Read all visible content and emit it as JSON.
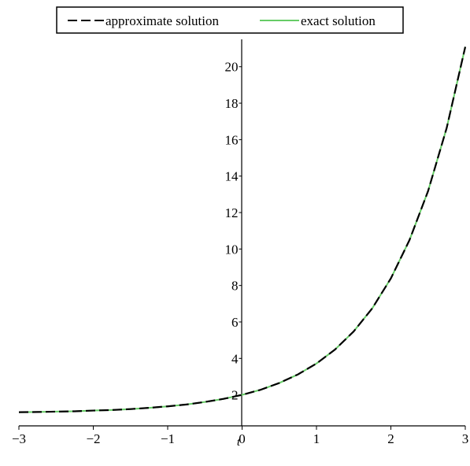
{
  "chart_data": {
    "type": "line",
    "title": "",
    "xlabel": "t",
    "ylabel": "",
    "xlim": [
      -3,
      3
    ],
    "ylim": [
      0.3,
      21.5
    ],
    "x_ticks": [
      -3,
      -2,
      -1,
      0,
      1,
      2,
      3
    ],
    "x_tick_labels": [
      "−3",
      "−2",
      "−1",
      "0",
      "1",
      "2",
      "3"
    ],
    "y_ticks": [
      2,
      4,
      6,
      8,
      10,
      12,
      14,
      16,
      18,
      20
    ],
    "y_tick_labels": [
      "2",
      "4",
      "6",
      "8",
      "10",
      "12",
      "14",
      "16",
      "18",
      "20"
    ],
    "grid": false,
    "legend_position": "top",
    "x": [
      -3,
      -2.75,
      -2.5,
      -2.25,
      -2,
      -1.75,
      -1.5,
      -1.25,
      -1,
      -0.75,
      -0.5,
      -0.25,
      0,
      0.25,
      0.5,
      0.75,
      1,
      1.25,
      1.5,
      1.75,
      2,
      2.25,
      2.5,
      2.75,
      3
    ],
    "series": [
      {
        "name": "approximate solution",
        "color": "#000000",
        "dash": "dashed",
        "values": [
          1.05,
          1.06,
          1.08,
          1.1,
          1.14,
          1.17,
          1.22,
          1.29,
          1.37,
          1.47,
          1.61,
          1.78,
          2.0,
          2.28,
          2.65,
          3.12,
          3.72,
          4.49,
          5.48,
          6.75,
          8.39,
          10.49,
          13.18,
          16.64,
          21.09
        ]
      },
      {
        "name": "exact solution",
        "color": "#66cc66",
        "dash": "solid",
        "values": [
          1.05,
          1.06,
          1.08,
          1.1,
          1.14,
          1.17,
          1.22,
          1.29,
          1.37,
          1.47,
          1.61,
          1.78,
          2.0,
          2.28,
          2.65,
          3.12,
          3.72,
          4.49,
          5.48,
          6.75,
          8.39,
          10.49,
          13.18,
          16.64,
          21.09
        ]
      }
    ]
  }
}
